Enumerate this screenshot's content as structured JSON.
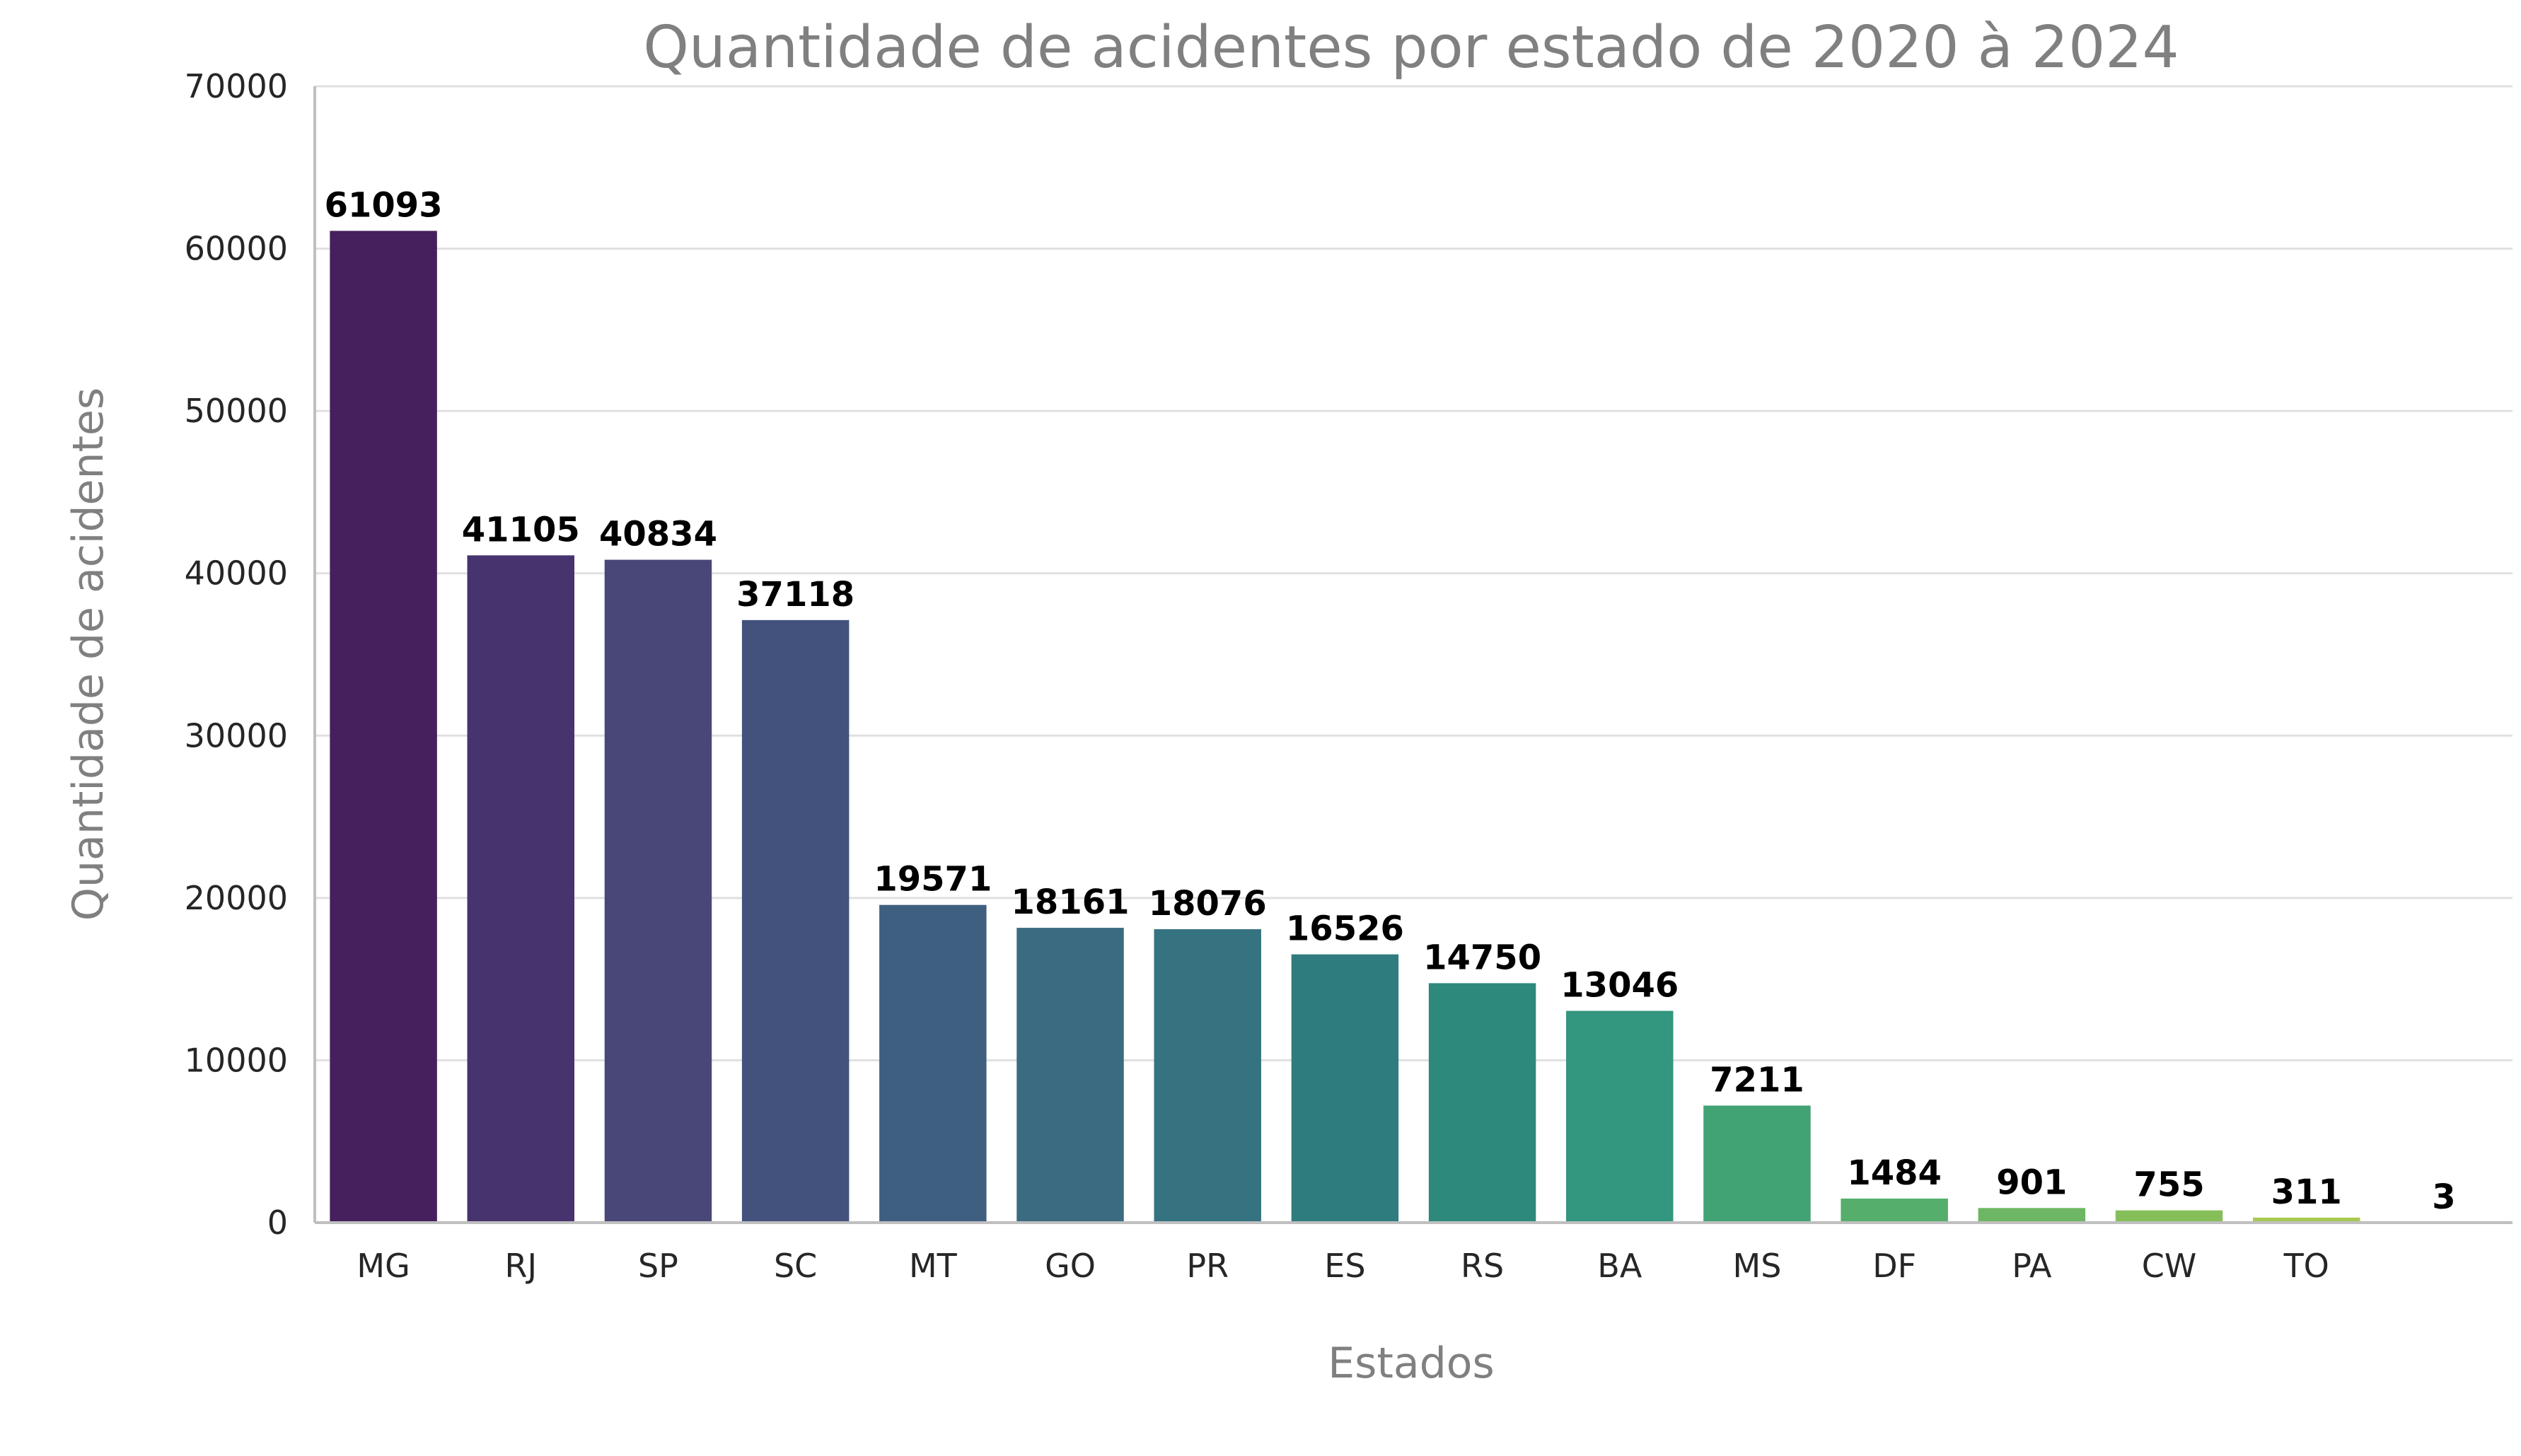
{
  "chart_data": {
    "type": "bar",
    "title": "Quantidade de acidentes por estado de 2020 à 2024",
    "xlabel": "Estados",
    "ylabel": "Quantidade de acidentes",
    "categories": [
      "MG",
      "RJ",
      "SP",
      "SC",
      "MT",
      "GO",
      "PR",
      "ES",
      "RS",
      "BA",
      "MS",
      "DF",
      "PA",
      "CW",
      "TO",
      ""
    ],
    "values": [
      61093,
      41105,
      40834,
      37118,
      19571,
      18161,
      18076,
      16526,
      14750,
      13046,
      7211,
      1484,
      901,
      755,
      311,
      3
    ],
    "data_labels": [
      "61093",
      "41105",
      "40834",
      "37118",
      "19571",
      "18161",
      "18076",
      "16526",
      "14750",
      "13046",
      "7211",
      "1484",
      "901",
      "755",
      "311",
      "3"
    ],
    "ylim": [
      0,
      70000
    ],
    "yticks": [
      "0",
      "10000",
      "20000",
      "30000",
      "40000",
      "50000",
      "60000",
      "70000"
    ],
    "colors": [
      "#46205c",
      "#47336e",
      "#484777",
      "#43527d",
      "#3f5f80",
      "#3a6b80",
      "#367380",
      "#2f7c7e",
      "#2c897c",
      "#33967e",
      "#41a374",
      "#55ae6b",
      "#6db663",
      "#86bf5a",
      "#a8c951",
      "#c9d34a"
    ],
    "grid": "horizontal",
    "legend": "none"
  }
}
